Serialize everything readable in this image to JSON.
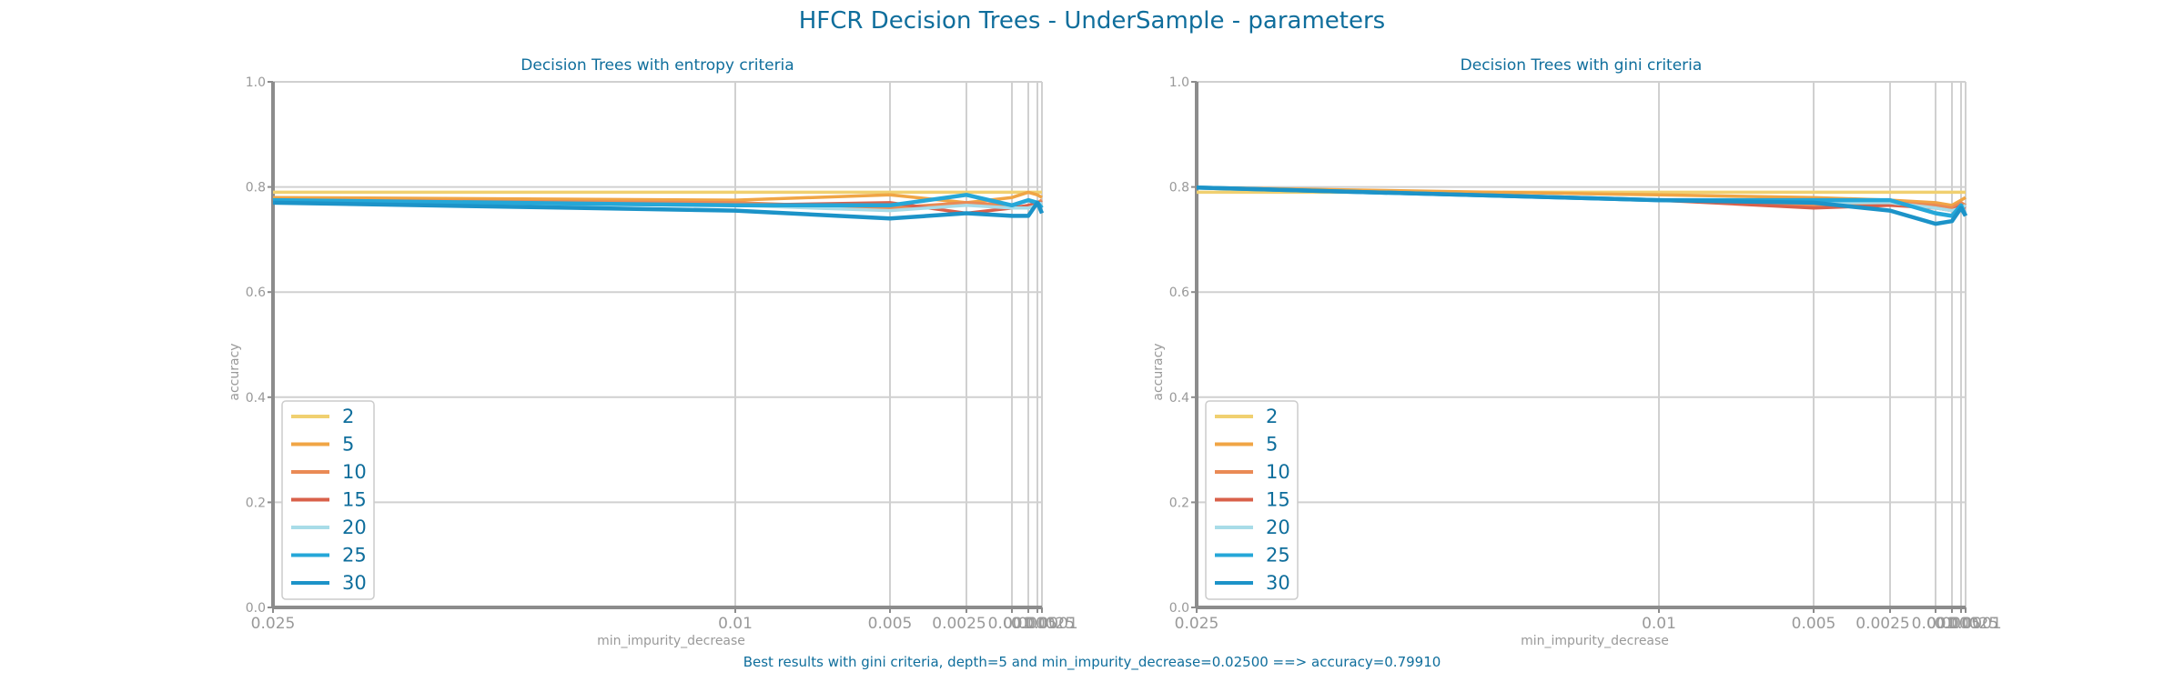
{
  "figure": {
    "title": "HFCR Decision Trees - UnderSample - parameters",
    "caption": "Best results with gini criteria, depth=5 and min_impurity_decrease=0.02500 ==> accuracy=0.79910"
  },
  "colors": {
    "title": "#0f6e9c",
    "axis_text": "#999999",
    "grid": "#d0d0d0",
    "axis_line": "#8c8c8c",
    "series": {
      "2": "#f0d070",
      "5": "#f0a545",
      "10": "#ea8a55",
      "15": "#d9604a",
      "20": "#a8dce8",
      "25": "#25a7d8",
      "30": "#1c93c8"
    }
  },
  "chart_data": [
    {
      "type": "line",
      "title": "Decision Trees with entropy criteria",
      "xlabel": "min_impurity_decrease",
      "ylabel": "accuracy",
      "ylim": [
        0,
        1
      ],
      "yticks": [
        "0.0",
        "0.2",
        "0.4",
        "0.6",
        "0.8",
        "1.0"
      ],
      "x_scale": "categorical-reversed",
      "x": [
        0.025,
        0.01,
        0.005,
        0.0025,
        0.001,
        0.0005,
        0.00025,
        0.0001
      ],
      "xtick_labels": [
        "0.025",
        "0.01",
        "0.005",
        "0.0025",
        "0.001",
        "0.0005",
        "0.00025",
        "0.0001"
      ],
      "grid": true,
      "legend": "lower-left",
      "series": [
        {
          "name": "2",
          "values": [
            0.79,
            0.79,
            0.79,
            0.79,
            0.79,
            0.79,
            0.79,
            0.79
          ]
        },
        {
          "name": "5",
          "values": [
            0.78,
            0.775,
            0.785,
            0.77,
            0.78,
            0.79,
            0.785,
            0.78
          ]
        },
        {
          "name": "10",
          "values": [
            0.775,
            0.77,
            0.76,
            0.77,
            0.765,
            0.775,
            0.77,
            0.775
          ]
        },
        {
          "name": "15",
          "values": [
            0.775,
            0.765,
            0.77,
            0.75,
            0.76,
            0.765,
            0.77,
            0.77
          ]
        },
        {
          "name": "20",
          "values": [
            0.77,
            0.765,
            0.755,
            0.765,
            0.76,
            0.76,
            0.765,
            0.77
          ]
        },
        {
          "name": "25",
          "values": [
            0.775,
            0.765,
            0.765,
            0.785,
            0.765,
            0.775,
            0.77,
            0.76
          ]
        },
        {
          "name": "30",
          "values": [
            0.77,
            0.755,
            0.74,
            0.75,
            0.745,
            0.745,
            0.77,
            0.75
          ]
        }
      ]
    },
    {
      "type": "line",
      "title": "Decision Trees with gini criteria",
      "xlabel": "min_impurity_decrease",
      "ylabel": "accuracy",
      "ylim": [
        0,
        1
      ],
      "yticks": [
        "0.0",
        "0.2",
        "0.4",
        "0.6",
        "0.8",
        "1.0"
      ],
      "x_scale": "categorical-reversed",
      "x": [
        0.025,
        0.01,
        0.005,
        0.0025,
        0.001,
        0.0005,
        0.00025,
        0.0001
      ],
      "xtick_labels": [
        "0.025",
        "0.01",
        "0.005",
        "0.0025",
        "0.001",
        "0.0005",
        "0.00025",
        "0.0001"
      ],
      "grid": true,
      "legend": "lower-left",
      "series": [
        {
          "name": "2",
          "values": [
            0.79,
            0.79,
            0.79,
            0.79,
            0.79,
            0.79,
            0.79,
            0.79
          ]
        },
        {
          "name": "5",
          "values": [
            0.799,
            0.785,
            0.78,
            0.775,
            0.77,
            0.765,
            0.775,
            0.78
          ]
        },
        {
          "name": "10",
          "values": [
            0.799,
            0.775,
            0.765,
            0.77,
            0.765,
            0.76,
            0.77,
            0.765
          ]
        },
        {
          "name": "15",
          "values": [
            0.799,
            0.775,
            0.76,
            0.765,
            0.76,
            0.755,
            0.765,
            0.76
          ]
        },
        {
          "name": "20",
          "values": [
            0.799,
            0.775,
            0.77,
            0.77,
            0.76,
            0.755,
            0.76,
            0.765
          ]
        },
        {
          "name": "25",
          "values": [
            0.799,
            0.775,
            0.775,
            0.775,
            0.75,
            0.745,
            0.765,
            0.745
          ]
        },
        {
          "name": "30",
          "values": [
            0.799,
            0.775,
            0.77,
            0.755,
            0.73,
            0.735,
            0.76,
            0.745
          ]
        }
      ]
    }
  ]
}
